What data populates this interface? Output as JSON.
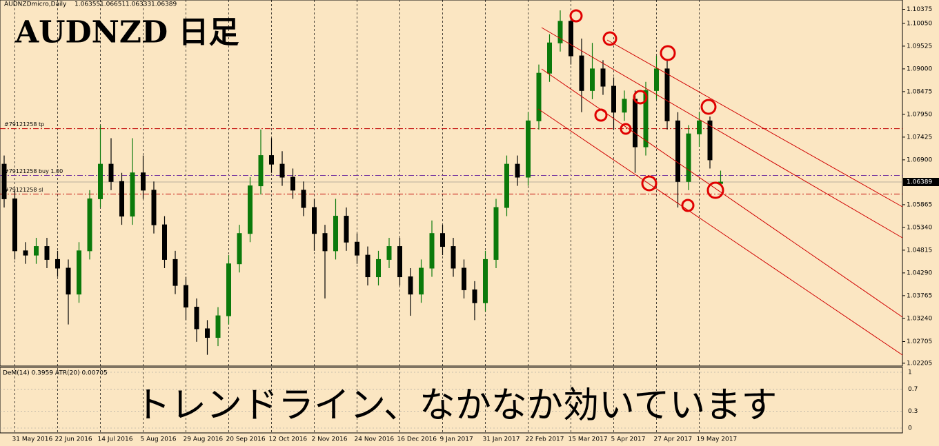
{
  "header": {
    "symbol": "AUDNZDmicro,Daily"
  },
  "title": "AUDNZD 日足",
  "caption": "トレンドライン、なかなか効いています",
  "chart_data": {
    "type": "candlestick",
    "categories": [
      null,
      "31 May 2016",
      null,
      null,
      null,
      "22 Jun 2016",
      null,
      null,
      null,
      "14 Jul 2016",
      null,
      null,
      null,
      "5 Aug 2016",
      null,
      null,
      null,
      "29 Aug 2016",
      null,
      null,
      null,
      "20 Sep 2016",
      null,
      null,
      null,
      "12 Oct 2016",
      null,
      null,
      null,
      "2 Nov 2016",
      null,
      null,
      null,
      "24 Nov 2016",
      null,
      null,
      null,
      "16 Dec 2016",
      null,
      null,
      null,
      "9 Jan 2017",
      null,
      null,
      null,
      "31 Jan 2017",
      null,
      null,
      null,
      "22 Feb 2017",
      null,
      null,
      null,
      "15 Mar 2017",
      null,
      null,
      null,
      "5 Apr 2017",
      null,
      null,
      null,
      "27 Apr 2017",
      null,
      null,
      null,
      "19 May 2017",
      null,
      null
    ],
    "open": [
      1.068,
      1.06,
      1.048,
      1.047,
      1.049,
      1.046,
      1.044,
      1.038,
      1.048,
      1.06,
      1.068,
      1.064,
      1.056,
      1.066,
      1.062,
      1.054,
      1.046,
      1.04,
      1.035,
      1.03,
      1.028,
      1.033,
      1.045,
      1.052,
      1.063,
      1.07,
      1.068,
      1.065,
      1.062,
      1.058,
      1.052,
      1.048,
      1.056,
      1.05,
      1.047,
      1.042,
      1.046,
      1.049,
      1.042,
      1.038,
      1.044,
      1.052,
      1.049,
      1.044,
      1.039,
      1.036,
      1.046,
      1.058,
      1.068,
      1.065,
      1.078,
      1.089,
      1.096,
      1.101,
      1.093,
      1.085,
      1.09,
      1.086,
      1.08,
      1.083,
      1.072,
      1.085,
      1.09,
      1.078,
      1.064,
      1.075,
      1.078,
      1.06355
    ],
    "high": [
      1.07,
      1.062,
      1.05,
      1.051,
      1.051,
      1.048,
      1.046,
      1.05,
      1.062,
      1.077,
      1.074,
      1.066,
      1.074,
      1.07,
      1.064,
      1.056,
      1.048,
      1.042,
      1.037,
      1.032,
      1.035,
      1.047,
      1.054,
      1.065,
      1.076,
      1.074,
      1.071,
      1.067,
      1.064,
      1.06,
      1.054,
      1.06,
      1.058,
      1.052,
      1.049,
      1.048,
      1.051,
      1.051,
      1.044,
      1.046,
      1.055,
      1.054,
      1.051,
      1.046,
      1.041,
      1.048,
      1.06,
      1.07,
      1.07,
      1.08,
      1.091,
      1.098,
      1.1035,
      1.103,
      1.097,
      1.096,
      1.092,
      1.088,
      1.085,
      1.085,
      1.087,
      1.093,
      1.092,
      1.08,
      1.077,
      1.08,
      1.079,
      1.06651
    ],
    "low": [
      1.058,
      1.046,
      1.045,
      1.045,
      1.044,
      1.042,
      1.031,
      1.036,
      1.046,
      1.058,
      1.062,
      1.054,
      1.054,
      1.06,
      1.052,
      1.044,
      1.038,
      1.032,
      1.027,
      1.024,
      1.026,
      1.031,
      1.043,
      1.05,
      1.061,
      1.066,
      1.063,
      1.06,
      1.056,
      1.048,
      1.037,
      1.046,
      1.048,
      1.045,
      1.04,
      1.04,
      1.044,
      1.04,
      1.033,
      1.036,
      1.042,
      1.047,
      1.042,
      1.037,
      1.032,
      1.034,
      1.044,
      1.056,
      1.063,
      1.063,
      1.076,
      1.087,
      1.094,
      1.091,
      1.08,
      1.083,
      1.084,
      1.076,
      1.078,
      1.066,
      1.07,
      1.083,
      1.076,
      1.058,
      1.062,
      1.072,
      1.067,
      1.06333
    ],
    "close": [
      1.06,
      1.048,
      1.047,
      1.049,
      1.046,
      1.044,
      1.038,
      1.048,
      1.06,
      1.068,
      1.064,
      1.056,
      1.066,
      1.062,
      1.054,
      1.046,
      1.04,
      1.035,
      1.03,
      1.028,
      1.033,
      1.045,
      1.052,
      1.063,
      1.07,
      1.068,
      1.065,
      1.062,
      1.058,
      1.052,
      1.048,
      1.056,
      1.05,
      1.047,
      1.042,
      1.046,
      1.049,
      1.042,
      1.038,
      1.044,
      1.052,
      1.049,
      1.044,
      1.039,
      1.036,
      1.046,
      1.058,
      1.068,
      1.065,
      1.078,
      1.089,
      1.096,
      1.101,
      1.093,
      1.085,
      1.09,
      1.086,
      1.08,
      1.083,
      1.072,
      1.085,
      1.09,
      1.078,
      1.064,
      1.075,
      1.078,
      1.069,
      1.06389
    ],
    "up_color": "#0b7a0b",
    "down_color": "#000000",
    "ylim": [
      1.0214,
      1.1059
    ],
    "yticks": [
      1.10375,
      {
        "value": 1.1005,
        "label": "1.10050"
      },
      1.09525,
      {
        "value": 1.09,
        "label": "1.09000"
      },
      1.08475,
      {
        "value": 1.0795,
        "label": "1.07950"
      },
      1.07425,
      {
        "value": 1.069,
        "label": "1.06900"
      },
      1.05865,
      {
        "value": 1.0534,
        "label": "1.05340"
      },
      1.04815,
      {
        "value": 1.0429,
        "label": "1.04290"
      },
      1.03765,
      {
        "value": 1.0324,
        "label": "1.03240"
      },
      1.02705,
      1.02205
    ],
    "order_lines": [
      {
        "name": "#79121258 tp",
        "value": 1.0762,
        "color": "#c00000"
      },
      {
        "name": "#79121258 buy 1.00",
        "value": 1.0654,
        "color": "#7030a0"
      },
      {
        "name": "#79121258 sl",
        "value": 1.0611,
        "color": "#c00000"
      }
    ],
    "indicator": {
      "label": "DeM(14) 0.3959 ATR(20) 0.00705",
      "ylim": [
        0,
        1
      ],
      "yticks": [
        1,
        0.7,
        0.3,
        0
      ]
    }
  }
}
